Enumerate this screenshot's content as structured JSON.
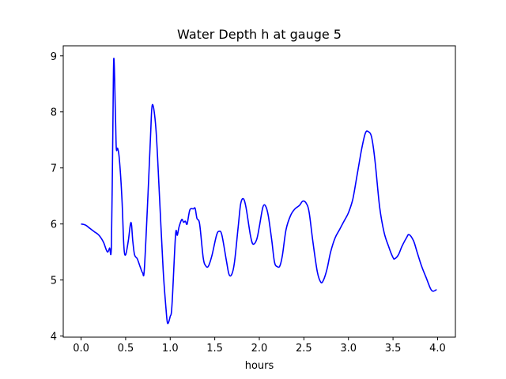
{
  "chart_data": {
    "type": "line",
    "title": "Water Depth h at gauge 5",
    "xlabel": "hours",
    "ylabel": "",
    "xlim": [
      -0.2,
      4.2
    ],
    "ylim": [
      3.98,
      9.18
    ],
    "xticks": [
      0.0,
      0.5,
      1.0,
      1.5,
      2.0,
      2.5,
      3.0,
      3.5,
      4.0
    ],
    "xtick_labels": [
      "0.0",
      "0.5",
      "1.0",
      "1.5",
      "2.0",
      "2.5",
      "3.0",
      "3.5",
      "4.0"
    ],
    "yticks": [
      4,
      5,
      6,
      7,
      8,
      9
    ],
    "ytick_labels": [
      "4",
      "5",
      "6",
      "7",
      "8",
      "9"
    ],
    "grid": false,
    "series": [
      {
        "name": "h",
        "color": "#0000ff",
        "x": [
          0.0,
          0.05,
          0.1,
          0.15,
          0.2,
          0.25,
          0.28,
          0.3,
          0.32,
          0.34,
          0.355,
          0.367,
          0.385,
          0.395,
          0.41,
          0.43,
          0.46,
          0.48,
          0.5,
          0.53,
          0.56,
          0.58,
          0.6,
          0.63,
          0.66,
          0.69,
          0.71,
          0.75,
          0.78,
          0.8,
          0.84,
          0.88,
          0.92,
          0.95,
          0.97,
          1.0,
          1.02,
          1.06,
          1.08,
          1.1,
          1.13,
          1.15,
          1.17,
          1.19,
          1.22,
          1.26,
          1.28,
          1.3,
          1.33,
          1.37,
          1.4,
          1.43,
          1.47,
          1.52,
          1.55,
          1.58,
          1.63,
          1.66,
          1.69,
          1.72,
          1.76,
          1.79,
          1.82,
          1.85,
          1.9,
          1.93,
          1.97,
          2.0,
          2.04,
          2.07,
          2.1,
          2.14,
          2.17,
          2.2,
          2.23,
          2.26,
          2.3,
          2.35,
          2.4,
          2.45,
          2.49,
          2.53,
          2.56,
          2.6,
          2.65,
          2.69,
          2.72,
          2.76,
          2.8,
          2.85,
          2.9,
          2.95,
          3.0,
          3.05,
          3.1,
          3.15,
          3.19,
          3.22,
          3.26,
          3.3,
          3.35,
          3.4,
          3.45,
          3.5,
          3.52,
          3.56,
          3.6,
          3.65,
          3.68,
          3.73,
          3.77,
          3.82,
          3.87,
          3.92,
          3.95,
          3.99
        ],
        "y": [
          6.0,
          5.98,
          5.92,
          5.86,
          5.8,
          5.68,
          5.55,
          5.5,
          5.57,
          5.6,
          7.5,
          8.95,
          8.0,
          7.35,
          7.35,
          7.15,
          6.4,
          5.6,
          5.45,
          5.7,
          6.03,
          5.7,
          5.45,
          5.38,
          5.25,
          5.13,
          5.2,
          6.5,
          7.6,
          8.13,
          7.7,
          6.5,
          5.2,
          4.55,
          4.23,
          4.35,
          4.55,
          5.8,
          5.8,
          5.95,
          6.08,
          6.03,
          6.05,
          6.0,
          6.25,
          6.27,
          6.28,
          6.1,
          6.0,
          5.4,
          5.25,
          5.25,
          5.45,
          5.8,
          5.87,
          5.8,
          5.35,
          5.1,
          5.1,
          5.3,
          5.9,
          6.35,
          6.45,
          6.3,
          5.8,
          5.64,
          5.72,
          5.95,
          6.3,
          6.32,
          6.15,
          5.7,
          5.32,
          5.24,
          5.25,
          5.45,
          5.9,
          6.15,
          6.27,
          6.33,
          6.41,
          6.36,
          6.2,
          5.7,
          5.15,
          4.96,
          5.0,
          5.2,
          5.5,
          5.75,
          5.9,
          6.05,
          6.2,
          6.45,
          6.9,
          7.35,
          7.62,
          7.65,
          7.55,
          7.1,
          6.3,
          5.85,
          5.6,
          5.4,
          5.38,
          5.45,
          5.6,
          5.75,
          5.81,
          5.7,
          5.5,
          5.25,
          5.05,
          4.85,
          4.8,
          4.83
        ]
      }
    ]
  }
}
